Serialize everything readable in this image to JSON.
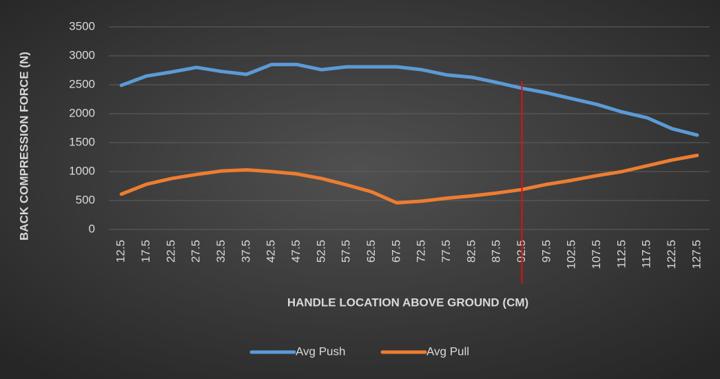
{
  "chart_data": {
    "type": "line",
    "x_label": "HANDLE LOCATION ABOVE GROUND (CM)",
    "y_label": "BACK COMPRESSION FORCE (N)",
    "x": [
      12.5,
      17.5,
      22.5,
      27.5,
      32.5,
      37.5,
      42.5,
      47.5,
      52.5,
      57.5,
      62.5,
      67.5,
      72.5,
      77.5,
      82.5,
      87.5,
      92.5,
      97.5,
      102.5,
      107.5,
      112.5,
      117.5,
      122.5,
      127.5
    ],
    "xlim": [
      10,
      130
    ],
    "xticks": [
      12.5,
      17.5,
      22.5,
      27.5,
      32.5,
      37.5,
      42.5,
      47.5,
      52.5,
      57.5,
      62.5,
      67.5,
      72.5,
      77.5,
      82.5,
      87.5,
      92.5,
      97.5,
      102.5,
      107.5,
      112.5,
      117.5,
      122.5,
      127.5
    ],
    "ylim": [
      0,
      3500
    ],
    "yticks": [
      0,
      500,
      1000,
      1500,
      2000,
      2500,
      3000,
      3500
    ],
    "grid": true,
    "legend": "bottom",
    "reference_line": {
      "x": 92.5,
      "color": "#e01010"
    },
    "series": [
      {
        "name": "Avg Push",
        "color": "#5b9bd5",
        "values": [
          2490,
          2650,
          2720,
          2800,
          2730,
          2680,
          2850,
          2850,
          2760,
          2810,
          2810,
          2810,
          2760,
          2670,
          2630,
          2540,
          2440,
          2360,
          2260,
          2160,
          2030,
          1930,
          1740,
          1630
        ]
      },
      {
        "name": "Avg Pull",
        "color": "#ed7d31",
        "values": [
          610,
          780,
          880,
          950,
          1010,
          1030,
          1000,
          960,
          880,
          770,
          650,
          460,
          490,
          540,
          580,
          630,
          690,
          780,
          850,
          930,
          1000,
          1100,
          1200,
          1280
        ]
      }
    ]
  }
}
